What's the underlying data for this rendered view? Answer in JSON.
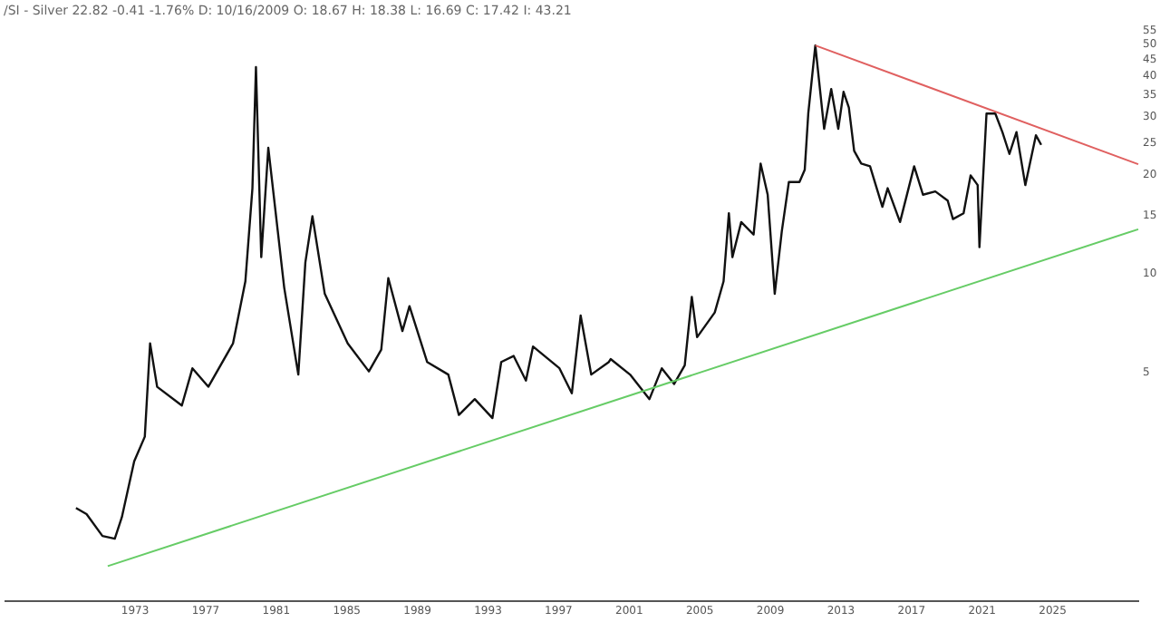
{
  "chart_data": {
    "type": "line",
    "title": "/SI - Silver 22.82 -0.41 -1.76% D: 10/16/2009 O: 18.67 H: 18.38 L: 16.69 C: 17.42 I: 43.21",
    "log": true,
    "grid": false,
    "marker": "none",
    "line_style": "solid",
    "xlim": [
      1965.6,
      2029.9
    ],
    "xticks": [
      1973,
      1977,
      1981,
      1985,
      1989,
      1993,
      1997,
      2001,
      2005,
      2009,
      2013,
      2017,
      2021,
      2025
    ],
    "ylim": [
      1.0,
      55
    ],
    "yticks": [
      5,
      10,
      15,
      20,
      25,
      30,
      35,
      40,
      45,
      50,
      55
    ],
    "series": [
      {
        "color": "#111111",
        "x": [
          1969.7,
          1970.3,
          1971.2,
          1971.9,
          1972.3,
          1973.0,
          1973.6,
          1973.9,
          1974.3,
          1975.7,
          1976.3,
          1977.2,
          1978.6,
          1979.3,
          1979.7,
          1979.9,
          1980.2,
          1980.6,
          1981.5,
          1982.3,
          1982.7,
          1983.1,
          1983.8,
          1985.1,
          1986.3,
          1987.0,
          1987.4,
          1988.2,
          1988.6,
          1989.6,
          1990.8,
          1991.4,
          1992.3,
          1993.3,
          1993.8,
          1994.5,
          1995.2,
          1995.6,
          1997.1,
          1997.8,
          1998.3,
          1998.9,
          1999.9,
          2000.0,
          2001.1,
          2002.2,
          2002.9,
          2003.6,
          2004.2,
          2004.6,
          2004.9,
          2005.9,
          2006.4,
          2006.7,
          2006.9,
          2007.4,
          2008.1,
          2008.5,
          2008.9,
          2009.3,
          2009.7,
          2010.1,
          2010.7,
          2011.0,
          2011.2,
          2011.6,
          2012.1,
          2012.5,
          2012.9,
          2013.2,
          2013.5,
          2013.8,
          2014.2,
          2014.7,
          2015.4,
          2015.7,
          2016.4,
          2017.2,
          2017.7,
          2018.4,
          2019.1,
          2019.4,
          2020.0,
          2020.4,
          2020.8,
          2020.9,
          2021.3,
          2021.8,
          2022.2,
          2022.6,
          2023.0,
          2023.5,
          2024.1,
          2024.4
        ],
        "values": [
          1.91,
          1.83,
          1.57,
          1.54,
          1.79,
          2.65,
          3.15,
          6.06,
          4.47,
          3.92,
          5.09,
          4.47,
          6.06,
          9.37,
          18.0,
          42.1,
          11.1,
          23.9,
          8.97,
          4.87,
          10.7,
          14.8,
          8.58,
          6.06,
          4.98,
          5.8,
          9.58,
          6.61,
          7.87,
          5.32,
          4.87,
          3.67,
          4.1,
          3.59,
          5.32,
          5.55,
          4.67,
          5.93,
          5.09,
          4.27,
          7.37,
          4.87,
          5.32,
          5.43,
          4.87,
          4.1,
          5.09,
          4.56,
          5.2,
          8.4,
          6.33,
          7.53,
          9.37,
          15.1,
          11.1,
          14.2,
          13.0,
          21.4,
          17.2,
          8.58,
          13.3,
          18.8,
          18.8,
          20.5,
          30.4,
          49,
          27.3,
          36.1,
          27.3,
          35.4,
          31.7,
          23.4,
          21.4,
          21.0,
          15.8,
          18.0,
          14.2,
          21.0,
          17.2,
          17.6,
          16.5,
          14.5,
          15.1,
          19.7,
          18.4,
          11.9,
          30.4,
          30.4,
          26.7,
          22.9,
          26.7,
          18.4,
          26.1,
          24.4
        ]
      },
      {
        "color": "#e06060",
        "x": [
          2011.6,
          2029.9
        ],
        "values": [
          49,
          21.3
        ]
      },
      {
        "color": "#66cc66",
        "x": [
          1971.5,
          2029.9
        ],
        "values": [
          1.27,
          13.5
        ]
      }
    ]
  }
}
